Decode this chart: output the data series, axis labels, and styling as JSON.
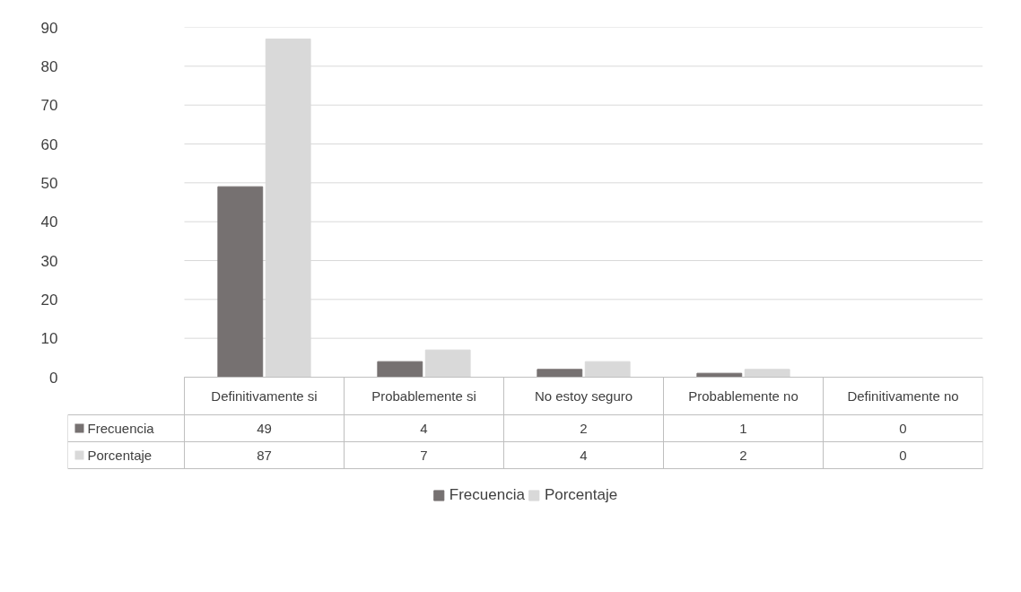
{
  "chart_data": {
    "type": "bar",
    "categories": [
      "Definitivamente si",
      "Probablemente si",
      "No estoy seguro",
      "Probablemente no",
      "Definitivamente no"
    ],
    "series": [
      {
        "name": "Frecuencia",
        "color": "#767171",
        "values": [
          49,
          4,
          2,
          1,
          0
        ]
      },
      {
        "name": "Porcentaje",
        "color": "#d9d9d9",
        "values": [
          87,
          7,
          4,
          2,
          0
        ]
      }
    ],
    "ylim": [
      0,
      90
    ],
    "yticks": [
      0,
      10,
      20,
      30,
      40,
      50,
      60,
      70,
      80,
      90
    ],
    "grid": "y",
    "legend": "bottom",
    "data_labels": true
  }
}
